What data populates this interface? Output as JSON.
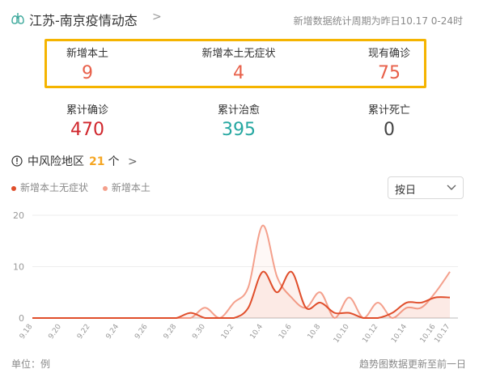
{
  "header": {
    "title": "江苏-南京疫情动态",
    "chevron": ">",
    "update_note": "新增数据统计周期为昨日10.17 0-24时"
  },
  "stats_highlighted": [
    {
      "label": "新增本土",
      "value": "9",
      "color": "#e8604a"
    },
    {
      "label": "新增本土无症状",
      "value": "4",
      "color": "#e8604a"
    },
    {
      "label": "现有确诊",
      "value": "75",
      "color": "#e8604a"
    }
  ],
  "stats_totals": [
    {
      "label": "累计确诊",
      "value": "470",
      "color": "#d0262c"
    },
    {
      "label": "累计治愈",
      "value": "395",
      "color": "#25a7a1"
    },
    {
      "label": "累计死亡",
      "value": "0",
      "color": "#444444"
    }
  ],
  "risk_area": {
    "label": "中风险地区",
    "count": "21",
    "unit": "个",
    "chevron": ">"
  },
  "legend": [
    {
      "name": "新增本土无症状",
      "color": "#e04e2b"
    },
    {
      "name": "新增本土",
      "color": "#f4a08c"
    }
  ],
  "period_select": {
    "value": "按日"
  },
  "chart_data": {
    "type": "line",
    "x": [
      "9.18",
      "9.19",
      "9.20",
      "9.21",
      "9.22",
      "9.23",
      "9.24",
      "9.25",
      "9.26",
      "9.27",
      "9.28",
      "9.29",
      "9.30",
      "10.1",
      "10.2",
      "10.3",
      "10.4",
      "10.5",
      "10.6",
      "10.7",
      "10.8",
      "10.9",
      "10.10",
      "10.11",
      "10.12",
      "10.13",
      "10.14",
      "10.15",
      "10.16",
      "10.17"
    ],
    "x_tick_labels": [
      "9.18",
      "9.20",
      "9.22",
      "9.24",
      "9.26",
      "9.28",
      "9.30",
      "10.2",
      "10.4",
      "10.6",
      "10.8",
      "10.10",
      "10.12",
      "10.14",
      "10.16",
      "10.17"
    ],
    "y_ticks": [
      "0",
      "10",
      "20"
    ],
    "ylim": [
      0,
      20
    ],
    "series": [
      {
        "name": "新增本土无症状",
        "color": "#e04e2b",
        "values": [
          0,
          0,
          0,
          0,
          0,
          0,
          0,
          0,
          0,
          0,
          0,
          1,
          0,
          0,
          0,
          2,
          9,
          5,
          9,
          2,
          3,
          1,
          1,
          0,
          0,
          1,
          3,
          3,
          4,
          4
        ]
      },
      {
        "name": "新增本土",
        "color": "#f4a08c",
        "values": [
          0,
          0,
          0,
          0,
          0,
          0,
          0,
          0,
          0,
          0,
          0,
          0,
          2,
          0,
          3,
          6,
          18,
          8,
          4,
          2,
          5,
          0,
          4,
          0,
          3,
          0,
          2,
          2,
          5,
          9
        ]
      }
    ]
  },
  "footer": {
    "unit": "单位：例",
    "note": "趋势图数据更新至前一日"
  }
}
